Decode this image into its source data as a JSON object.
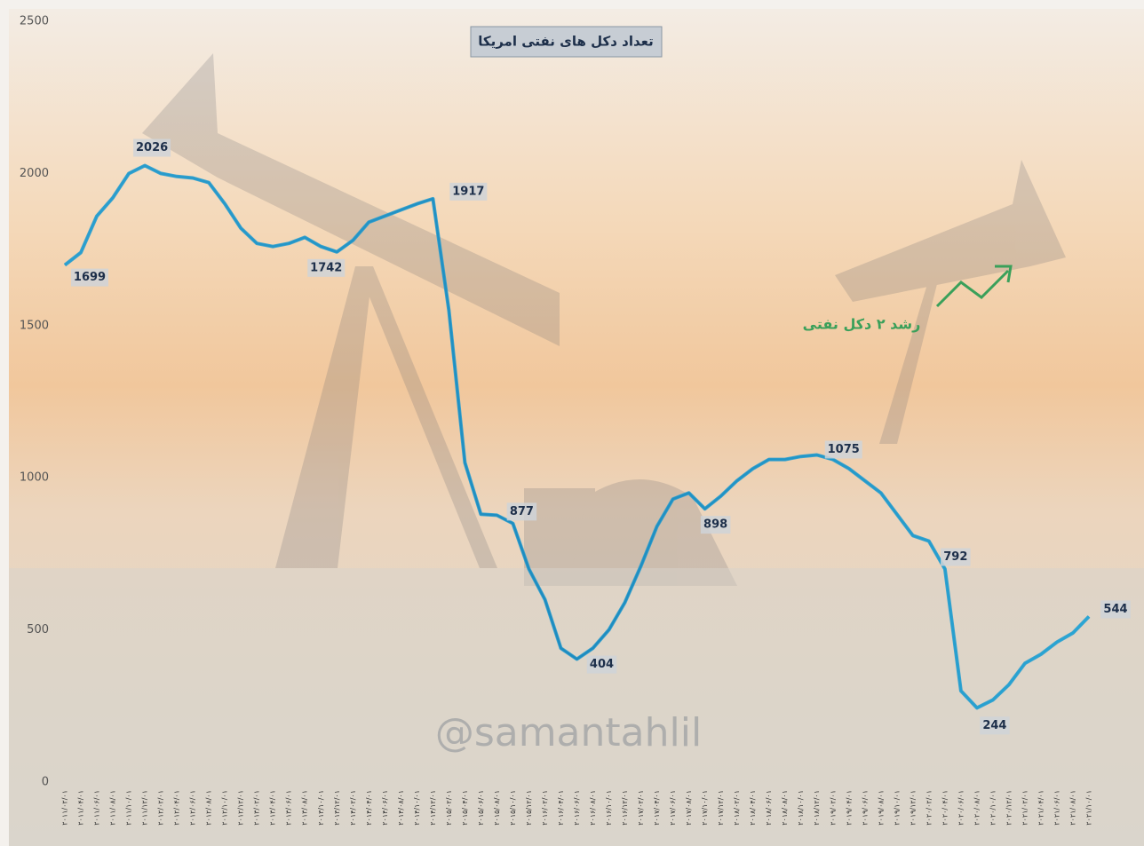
{
  "chart_data": {
    "type": "line",
    "title": "تعداد دکل های نفتی امریکا",
    "annotation": "رشد ۲ دکل نفتی",
    "watermark": "@samantahlil",
    "categories": [
      "۲۰۱۱/۰۲/۰۱",
      "۲۰۱۱/۰۴/۰۱",
      "۲۰۱۱/۰۶/۰۱",
      "۲۰۱۱/۰۸/۰۱",
      "۲۰۱۱/۱۰/۰۱",
      "۲۰۱۱/۱۲/۰۱",
      "۲۰۱۲/۰۲/۰۱",
      "۲۰۱۲/۰۴/۰۱",
      "۲۰۱۲/۰۶/۰۱",
      "۲۰۱۲/۰۸/۰۱",
      "۲۰۱۲/۱۰/۰۱",
      "۲۰۱۲/۱۲/۰۱",
      "۲۰۱۳/۰۲/۰۱",
      "۲۰۱۳/۰۴/۰۱",
      "۲۰۱۳/۰۶/۰۱",
      "۲۰۱۳/۰۸/۰۱",
      "۲۰۱۳/۱۰/۰۱",
      "۲۰۱۳/۱۲/۰۱",
      "۲۰۱۴/۰۲/۰۱",
      "۲۰۱۴/۰۴/۰۱",
      "۲۰۱۴/۰۶/۰۱",
      "۲۰۱۴/۰۸/۰۱",
      "۲۰۱۴/۱۰/۰۱",
      "۲۰۱۴/۱۲/۰۱",
      "۲۰۱۵/۰۲/۰۱",
      "۲۰۱۵/۰۴/۰۱",
      "۲۰۱۵/۰۶/۰۱",
      "۲۰۱۵/۰۸/۰۱",
      "۲۰۱۵/۱۰/۰۱",
      "۲۰۱۵/۱۲/۰۱",
      "۲۰۱۶/۰۲/۰۱",
      "۲۰۱۶/۰۴/۰۱",
      "۲۰۱۶/۰۶/۰۱",
      "۲۰۱۶/۰۸/۰۱",
      "۲۰۱۶/۱۰/۰۱",
      "۲۰۱۶/۱۲/۰۱",
      "۲۰۱۷/۰۲/۰۱",
      "۲۰۱۷/۰۴/۰۱",
      "۲۰۱۷/۰۶/۰۱",
      "۲۰۱۷/۰۸/۰۱",
      "۲۰۱۷/۱۰/۰۱",
      "۲۰۱۷/۱۲/۰۱",
      "۲۰۱۸/۰۲/۰۱",
      "۲۰۱۸/۰۴/۰۱",
      "۲۰۱۸/۰۶/۰۱",
      "۲۰۱۸/۰۸/۰۱",
      "۲۰۱۸/۱۰/۰۱",
      "۲۰۱۸/۱۲/۰۱",
      "۲۰۱۹/۰۲/۰۱",
      "۲۰۱۹/۰۴/۰۱",
      "۲۰۱۹/۰۶/۰۱",
      "۲۰۱۹/۰۸/۰۱",
      "۲۰۱۹/۱۰/۰۱",
      "۲۰۱۹/۱۲/۰۱",
      "۲۰۲۰/۰۲/۰۱",
      "۲۰۲۰/۰۴/۰۱",
      "۲۰۲۰/۰۶/۰۱",
      "۲۰۲۰/۰۸/۰۱",
      "۲۰۲۰/۱۰/۰۱",
      "۲۰۲۰/۱۲/۰۱",
      "۲۰۲۱/۰۲/۰۱",
      "۲۰۲۱/۰۴/۰۱",
      "۲۰۲۱/۰۶/۰۱",
      "۲۰۲۱/۰۸/۰۱",
      "۲۰۲۱/۱۰/۰۱"
    ],
    "values": [
      1699,
      1740,
      1860,
      1920,
      2000,
      2026,
      2000,
      1990,
      1985,
      1970,
      1900,
      1820,
      1770,
      1760,
      1770,
      1790,
      1760,
      1742,
      1780,
      1840,
      1860,
      1880,
      1900,
      1917,
      1550,
      1050,
      880,
      877,
      850,
      700,
      600,
      440,
      404,
      440,
      500,
      590,
      710,
      840,
      930,
      950,
      898,
      940,
      990,
      1030,
      1060,
      1060,
      1070,
      1075,
      1060,
      1030,
      990,
      950,
      880,
      810,
      792,
      700,
      300,
      244,
      270,
      320,
      390,
      420,
      460,
      490,
      544
    ],
    "value_labels": [
      "1699",
      null,
      null,
      null,
      null,
      "2026",
      null,
      null,
      null,
      null,
      null,
      null,
      null,
      null,
      null,
      null,
      null,
      "1742",
      null,
      null,
      null,
      null,
      null,
      "1917",
      null,
      null,
      null,
      "877",
      null,
      null,
      null,
      null,
      "404",
      null,
      null,
      null,
      null,
      null,
      null,
      null,
      "898",
      null,
      null,
      null,
      null,
      null,
      null,
      "1075",
      null,
      null,
      null,
      null,
      null,
      null,
      "792",
      null,
      null,
      "244",
      null,
      null,
      null,
      null,
      null,
      null,
      "544"
    ],
    "color": "#2a9fcf",
    "ylim": [
      0,
      2500
    ],
    "yticks": [
      0,
      500,
      1000,
      1500,
      2000,
      2500
    ],
    "grid": false
  }
}
